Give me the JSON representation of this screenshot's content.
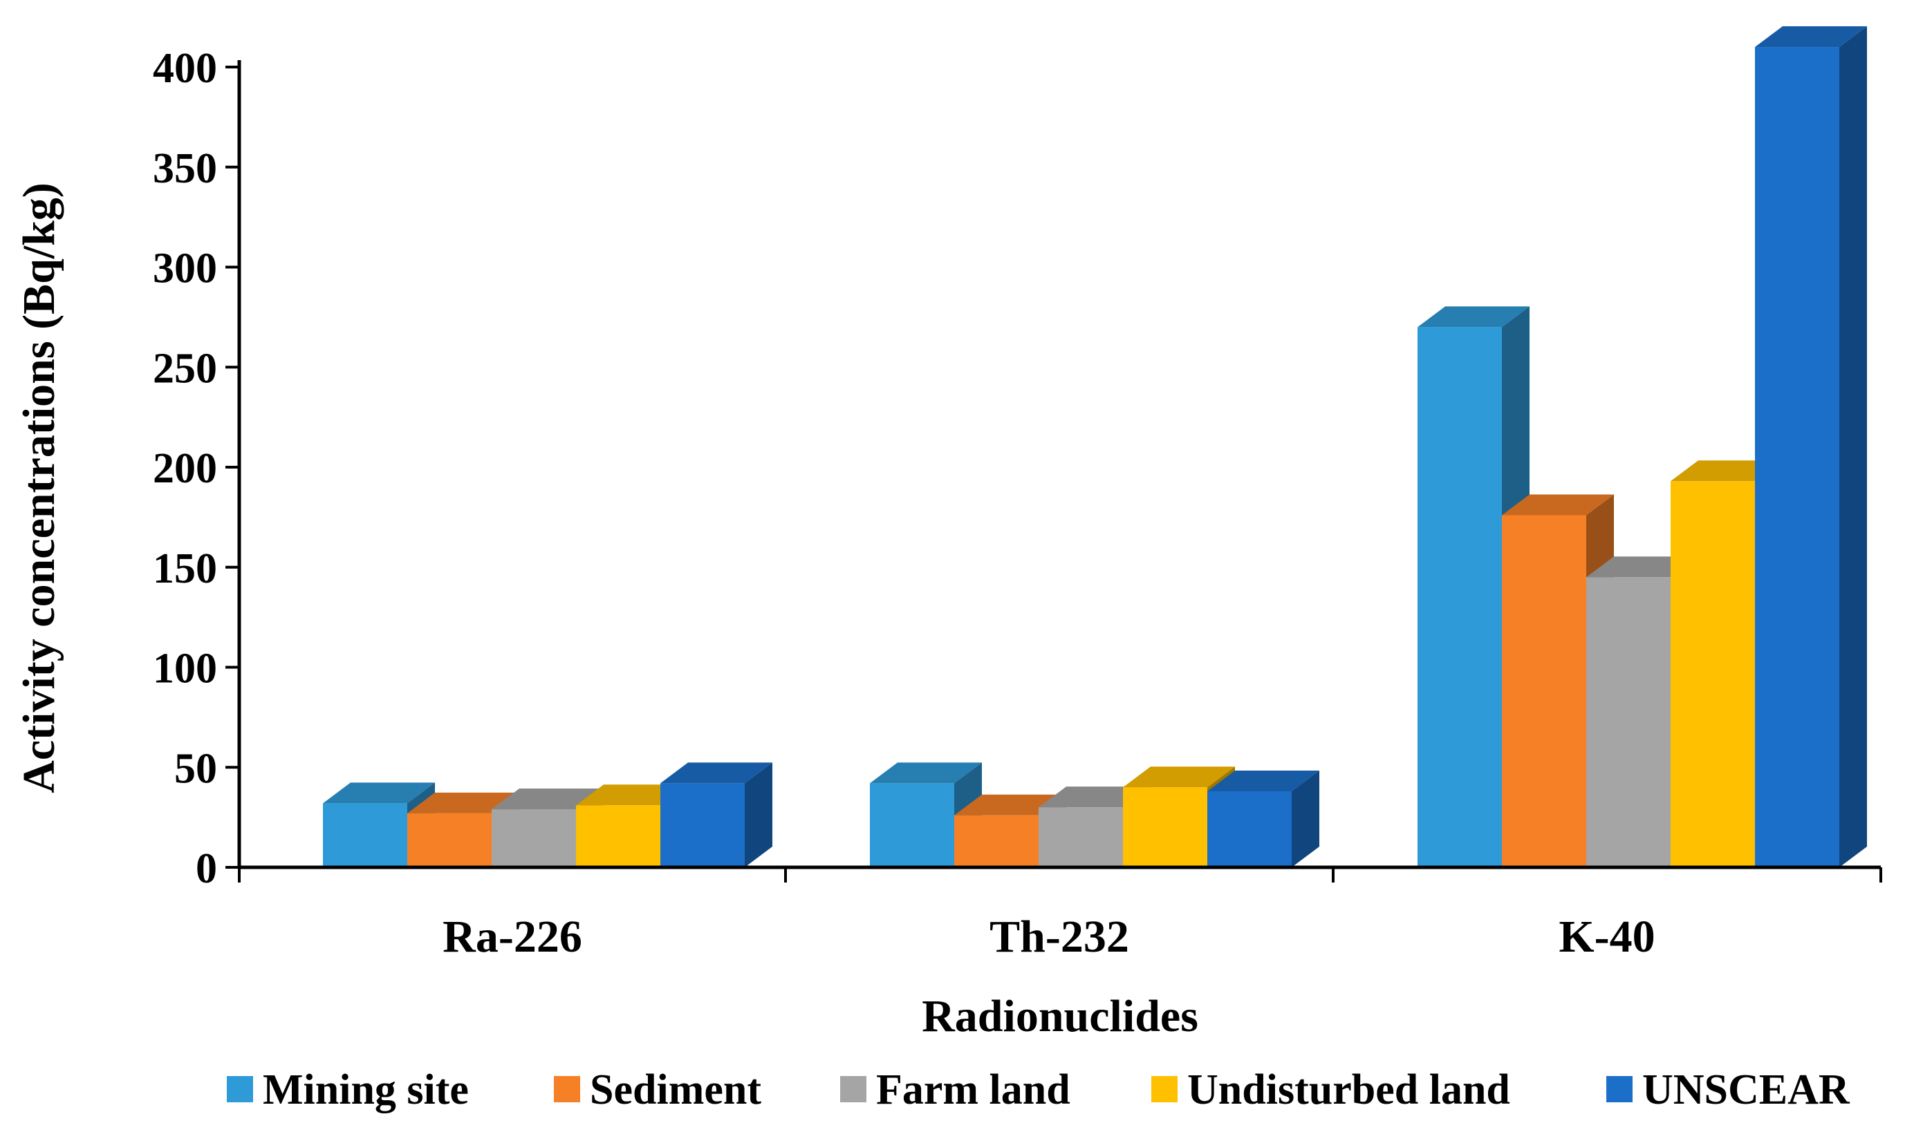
{
  "chart_data": {
    "type": "bar",
    "style": "3d-clustered",
    "title": "",
    "xlabel": "Radionuclides",
    "ylabel": "Activity concentrations (Bq/kg)",
    "ylim": [
      0,
      400
    ],
    "yticks": [
      0,
      50,
      100,
      150,
      200,
      250,
      300,
      350,
      400
    ],
    "grid": false,
    "legend_position": "bottom",
    "categories": [
      "Ra-226",
      "Th-232",
      "K-40"
    ],
    "series": [
      {
        "name": "Mining site",
        "color": "#2E9AD8",
        "values": [
          32,
          42,
          270
        ]
      },
      {
        "name": "Sediment",
        "color": "#F58026",
        "values": [
          27,
          26,
          176
        ]
      },
      {
        "name": "Farm land",
        "color": "#A5A5A5",
        "values": [
          29,
          30,
          145
        ]
      },
      {
        "name": "Undisturbed land",
        "color": "#FFC000",
        "values": [
          31,
          40,
          193
        ]
      },
      {
        "name": "UNSCEAR",
        "color": "#1C6FC9",
        "values": [
          42,
          38,
          410
        ]
      }
    ]
  }
}
